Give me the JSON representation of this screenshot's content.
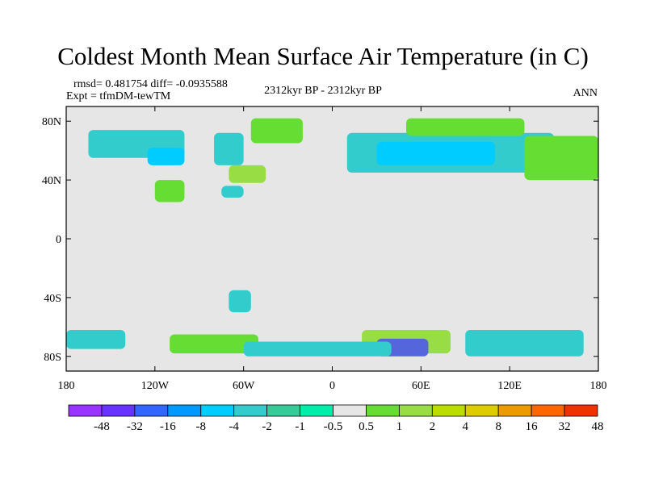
{
  "title": "Coldest Month Mean Surface Air Temperature (in C)",
  "stats": "rmsd= 0.481754  diff= -0.0935588",
  "experiment": "Expt = tfmDM-tewTM",
  "period": "2312kyr BP - 2312kyr BP",
  "season": "ANN",
  "map": {
    "projection": "cylindrical equidistant",
    "lon_range": [
      -180,
      180
    ],
    "lat_range": [
      -90,
      90
    ],
    "x_ticks": [
      {
        "value": -180,
        "label": "180"
      },
      {
        "value": -120,
        "label": "120W"
      },
      {
        "value": -60,
        "label": "60W"
      },
      {
        "value": 0,
        "label": "0"
      },
      {
        "value": 60,
        "label": "60E"
      },
      {
        "value": 120,
        "label": "120E"
      },
      {
        "value": 180,
        "label": "180"
      }
    ],
    "y_ticks": [
      {
        "value": 80,
        "label": "80N"
      },
      {
        "value": 40,
        "label": "40N"
      },
      {
        "value": 0,
        "label": "0"
      },
      {
        "value": -40,
        "label": "40S"
      },
      {
        "value": -80,
        "label": "80S"
      }
    ],
    "background_color": "#e6e6e6",
    "anomaly_regions": [
      {
        "lon": [
          -165,
          -100
        ],
        "lat": [
          55,
          74
        ],
        "color": "#33cccc"
      },
      {
        "lon": [
          -125,
          -100
        ],
        "lat": [
          50,
          62
        ],
        "color": "#00ccff"
      },
      {
        "lon": [
          -80,
          -60
        ],
        "lat": [
          50,
          72
        ],
        "color": "#33cccc"
      },
      {
        "lon": [
          -55,
          -20
        ],
        "lat": [
          65,
          82
        ],
        "color": "#66dd33"
      },
      {
        "lon": [
          -120,
          -100
        ],
        "lat": [
          25,
          40
        ],
        "color": "#66dd33"
      },
      {
        "lon": [
          -70,
          -45
        ],
        "lat": [
          38,
          50
        ],
        "color": "#99dd44"
      },
      {
        "lon": [
          -75,
          -60
        ],
        "lat": [
          28,
          36
        ],
        "color": "#33cccc"
      },
      {
        "lon": [
          10,
          150
        ],
        "lat": [
          45,
          72
        ],
        "color": "#33cccc"
      },
      {
        "lon": [
          30,
          110
        ],
        "lat": [
          50,
          66
        ],
        "color": "#00ccff"
      },
      {
        "lon": [
          50,
          130
        ],
        "lat": [
          70,
          82
        ],
        "color": "#66dd33"
      },
      {
        "lon": [
          130,
          180
        ],
        "lat": [
          40,
          70
        ],
        "color": "#66dd33"
      },
      {
        "lon": [
          -180,
          -140
        ],
        "lat": [
          -75,
          -62
        ],
        "color": "#33cccc"
      },
      {
        "lon": [
          -110,
          -50
        ],
        "lat": [
          -78,
          -65
        ],
        "color": "#66dd33"
      },
      {
        "lon": [
          20,
          80
        ],
        "lat": [
          -78,
          -62
        ],
        "color": "#99dd44"
      },
      {
        "lon": [
          90,
          170
        ],
        "lat": [
          -80,
          -62
        ],
        "color": "#33cccc"
      },
      {
        "lon": [
          30,
          65
        ],
        "lat": [
          -80,
          -68
        ],
        "color": "#5566dd"
      },
      {
        "lon": [
          -60,
          40
        ],
        "lat": [
          -80,
          -70
        ],
        "color": "#33cccc"
      },
      {
        "lon": [
          -70,
          -55
        ],
        "lat": [
          -50,
          -35
        ],
        "color": "#33cccc"
      }
    ]
  },
  "colorbar": {
    "colors": [
      "#9933ff",
      "#6633ff",
      "#3366ff",
      "#0099ff",
      "#00ccff",
      "#33cccc",
      "#33cc99",
      "#00eeaa",
      "#e6e6e6",
      "#66dd33",
      "#99dd44",
      "#bbdd00",
      "#ddcc00",
      "#ee9900",
      "#ff6600",
      "#ee3300"
    ],
    "labels": [
      "-48",
      "-32",
      "-16",
      "-8",
      "-4",
      "-2",
      "-1",
      "-0.5",
      "0.5",
      "1",
      "2",
      "4",
      "8",
      "16",
      "32",
      "48"
    ]
  }
}
